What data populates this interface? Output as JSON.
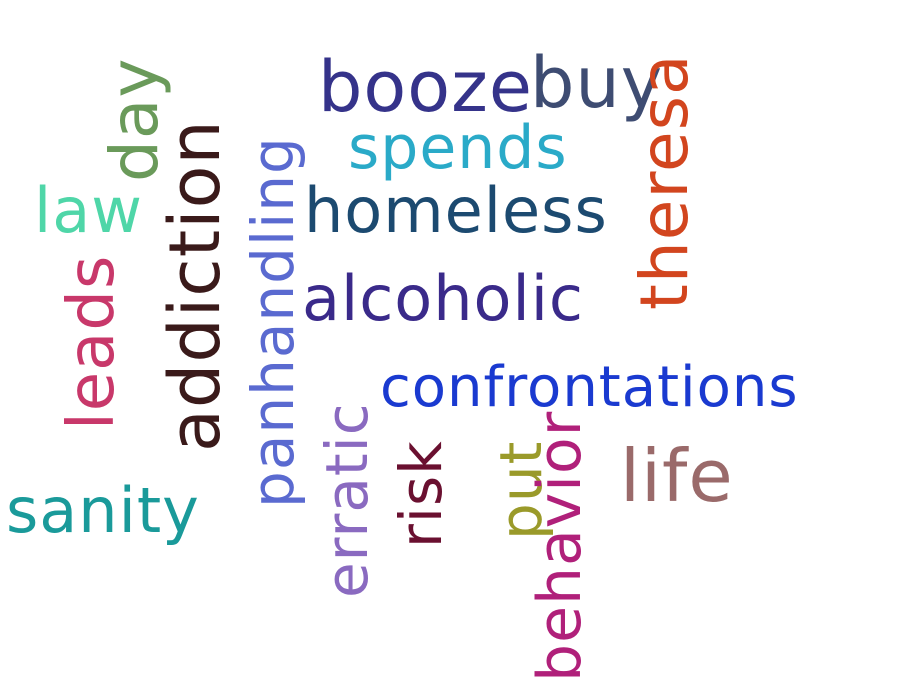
{
  "words": {
    "booze": {
      "text": "booze",
      "color": "#35338a"
    },
    "buy": {
      "text": "buy",
      "color": "#3e4c72"
    },
    "theresa": {
      "text": "theresa",
      "color": "#d2451e"
    },
    "day": {
      "text": "day",
      "color": "#6a9a5a"
    },
    "spends": {
      "text": "spends",
      "color": "#2aaac8"
    },
    "law": {
      "text": "law",
      "color": "#4fd6a8"
    },
    "addiction": {
      "text": "addiction",
      "color": "#3a1a1a"
    },
    "panhandling": {
      "text": "panhandling",
      "color": "#5a6ad0"
    },
    "homeless": {
      "text": "homeless",
      "color": "#1c4a70"
    },
    "alcoholic": {
      "text": "alcoholic",
      "color": "#3a2a8a"
    },
    "leads": {
      "text": "leads",
      "color": "#c8386a"
    },
    "confrontations": {
      "text": "confrontations",
      "color": "#1a3ad0"
    },
    "erratic": {
      "text": "erratic",
      "color": "#8a6ac0"
    },
    "risk": {
      "text": "risk",
      "color": "#6a1030"
    },
    "put": {
      "text": "put",
      "color": "#9a9a2a"
    },
    "behavior": {
      "text": "behavior",
      "color": "#b0207a"
    },
    "life": {
      "text": "life",
      "color": "#9a6a6a"
    },
    "sanity": {
      "text": "sanity",
      "color": "#1a9a9a"
    }
  }
}
